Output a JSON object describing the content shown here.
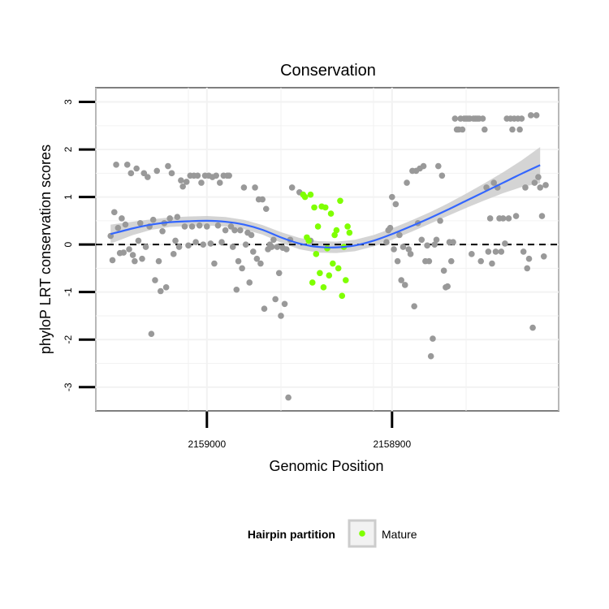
{
  "chart_data": {
    "type": "scatter",
    "title": "Conservation",
    "xlabel": "Genomic Position",
    "ylabel": "phyloP LRT conservation scores",
    "x_reversed": true,
    "xlim": [
      2159060,
      2158810
    ],
    "ylim": [
      -3.5,
      3.3
    ],
    "x_ticks": [
      2159000,
      2158900
    ],
    "x_tick_labels": [
      "2159000",
      "2158900"
    ],
    "y_ticks": [
      -3,
      -2,
      -1,
      0,
      1,
      2,
      3
    ],
    "y_tick_labels": [
      "-3",
      "-2",
      "-1",
      "0",
      "1",
      "2",
      "3"
    ],
    "reference_line": {
      "y": 0,
      "style": "dashed"
    },
    "legend": {
      "title": "Hairpin partition",
      "position": "bottom",
      "entries": [
        {
          "label": "Mature",
          "color": "#7fff00"
        }
      ]
    },
    "colors": {
      "other": "#999999",
      "mature": "#7fff00",
      "smooth": "#3366ff",
      "band": "#cccccc",
      "panel": "#ffffff",
      "grid": "#f2f2f2",
      "border": "#7f7f7f"
    },
    "series": [
      {
        "name": "Other",
        "points": [
          [
            2159052,
            0.18
          ],
          [
            2159051,
            -0.33
          ],
          [
            2159050,
            0.68
          ],
          [
            2159049,
            1.68
          ],
          [
            2159048,
            0.35
          ],
          [
            2159047,
            -0.18
          ],
          [
            2159046,
            0.55
          ],
          [
            2159045,
            -0.17
          ],
          [
            2159044,
            0.42
          ],
          [
            2159043,
            1.68
          ],
          [
            2159042,
            -0.1
          ],
          [
            2159041,
            1.5
          ],
          [
            2159040,
            -0.22
          ],
          [
            2159039,
            -0.35
          ],
          [
            2159038,
            1.6
          ],
          [
            2159037,
            0.08
          ],
          [
            2159036,
            0.45
          ],
          [
            2159035,
            -0.3
          ],
          [
            2159034,
            1.5
          ],
          [
            2159033,
            -0.05
          ],
          [
            2159032,
            1.42
          ],
          [
            2159031,
            0.38
          ],
          [
            2159030,
            -1.88
          ],
          [
            2159029,
            0.52
          ],
          [
            2159028,
            -0.75
          ],
          [
            2159027,
            1.55
          ],
          [
            2159026,
            -0.35
          ],
          [
            2159025,
            -0.98
          ],
          [
            2159024,
            0.28
          ],
          [
            2159023,
            0.45
          ],
          [
            2159022,
            -0.9
          ],
          [
            2159021,
            1.65
          ],
          [
            2159020,
            0.55
          ],
          [
            2159019,
            1.5
          ],
          [
            2159018,
            -0.2
          ],
          [
            2159017,
            0.08
          ],
          [
            2159016,
            0.58
          ],
          [
            2159015,
            -0.05
          ],
          [
            2159014,
            1.35
          ],
          [
            2159013,
            1.22
          ],
          [
            2159012,
            0.38
          ],
          [
            2159011,
            1.32
          ],
          [
            2159010,
            -0.02
          ],
          [
            2159009,
            1.45
          ],
          [
            2159008,
            0.38
          ],
          [
            2159007,
            1.45
          ],
          [
            2159006,
            0.05
          ],
          [
            2159005,
            1.45
          ],
          [
            2159004,
            0.4
          ],
          [
            2159003,
            1.3
          ],
          [
            2159002,
            0.0
          ],
          [
            2159001,
            1.45
          ],
          [
            2159000,
            0.38
          ],
          [
            2158999,
            1.45
          ],
          [
            2158998,
            0.02
          ],
          [
            2158997,
            1.42
          ],
          [
            2158996,
            -0.4
          ],
          [
            2158995,
            1.45
          ],
          [
            2158994,
            0.4
          ],
          [
            2158993,
            1.3
          ],
          [
            2158992,
            0.05
          ],
          [
            2158991,
            1.45
          ],
          [
            2158990,
            0.3
          ],
          [
            2158989,
            1.45
          ],
          [
            2158988,
            1.45
          ],
          [
            2158987,
            0.38
          ],
          [
            2158986,
            -0.05
          ],
          [
            2158985,
            0.3
          ],
          [
            2158984,
            -0.95
          ],
          [
            2158983,
            -0.35
          ],
          [
            2158982,
            0.3
          ],
          [
            2158981,
            -0.5
          ],
          [
            2158980,
            1.2
          ],
          [
            2158979,
            0.0
          ],
          [
            2158978,
            0.25
          ],
          [
            2158977,
            -0.8
          ],
          [
            2158976,
            0.2
          ],
          [
            2158975,
            -0.15
          ],
          [
            2158974,
            1.2
          ],
          [
            2158973,
            -0.3
          ],
          [
            2158972,
            0.95
          ],
          [
            2158971,
            -0.4
          ],
          [
            2158970,
            0.95
          ],
          [
            2158969,
            -1.35
          ],
          [
            2158968,
            0.75
          ],
          [
            2158967,
            -0.1
          ],
          [
            2158966,
            0.0
          ],
          [
            2158965,
            -0.05
          ],
          [
            2158964,
            0.1
          ],
          [
            2158963,
            -1.15
          ],
          [
            2158962,
            -0.05
          ],
          [
            2158961,
            -0.6
          ],
          [
            2158960,
            -1.5
          ],
          [
            2158959,
            -0.07
          ],
          [
            2158958,
            -1.25
          ],
          [
            2158957,
            -0.1
          ],
          [
            2158956,
            -3.22
          ],
          [
            2158955,
            0.1
          ],
          [
            2158954,
            1.2
          ],
          [
            2158950,
            1.1
          ],
          [
            2158944,
            0.08
          ],
          [
            2158903,
            0.05
          ],
          [
            2158902,
            0.3
          ],
          [
            2158901,
            0.35
          ],
          [
            2158900,
            1.0
          ],
          [
            2158899,
            -0.1
          ],
          [
            2158898,
            0.85
          ],
          [
            2158897,
            -0.35
          ],
          [
            2158896,
            0.2
          ],
          [
            2158895,
            -0.75
          ],
          [
            2158894,
            -0.05
          ],
          [
            2158893,
            -0.85
          ],
          [
            2158892,
            1.3
          ],
          [
            2158891,
            -0.1
          ],
          [
            2158890,
            -0.2
          ],
          [
            2158889,
            1.55
          ],
          [
            2158888,
            -1.3
          ],
          [
            2158887,
            1.55
          ],
          [
            2158886,
            0.45
          ],
          [
            2158885,
            1.6
          ],
          [
            2158884,
            0.1
          ],
          [
            2158883,
            1.65
          ],
          [
            2158882,
            -0.35
          ],
          [
            2158881,
            -0.02
          ],
          [
            2158880,
            -0.35
          ],
          [
            2158879,
            -2.35
          ],
          [
            2158878,
            -1.98
          ],
          [
            2158877,
            0.0
          ],
          [
            2158876,
            0.1
          ],
          [
            2158875,
            1.65
          ],
          [
            2158874,
            0.5
          ],
          [
            2158873,
            1.45
          ],
          [
            2158872,
            -0.55
          ],
          [
            2158871,
            -0.9
          ],
          [
            2158870,
            -0.88
          ],
          [
            2158869,
            0.05
          ],
          [
            2158868,
            -0.35
          ],
          [
            2158867,
            0.05
          ],
          [
            2158866,
            2.65
          ],
          [
            2158865,
            2.42
          ],
          [
            2158864,
            2.42
          ],
          [
            2158863,
            2.65
          ],
          [
            2158862,
            2.42
          ],
          [
            2158861,
            2.65
          ],
          [
            2158860,
            2.65
          ],
          [
            2158859,
            2.65
          ],
          [
            2158858,
            2.65
          ],
          [
            2158857,
            -0.2
          ],
          [
            2158856,
            2.65
          ],
          [
            2158855,
            2.65
          ],
          [
            2158854,
            2.65
          ],
          [
            2158853,
            2.65
          ],
          [
            2158852,
            -0.35
          ],
          [
            2158851,
            2.65
          ],
          [
            2158850,
            2.42
          ],
          [
            2158849,
            1.2
          ],
          [
            2158848,
            -0.15
          ],
          [
            2158847,
            0.55
          ],
          [
            2158846,
            -0.4
          ],
          [
            2158845,
            1.3
          ],
          [
            2158844,
            -0.15
          ],
          [
            2158843,
            1.2
          ],
          [
            2158842,
            0.55
          ],
          [
            2158841,
            -0.15
          ],
          [
            2158840,
            0.55
          ],
          [
            2158839,
            0.02
          ],
          [
            2158838,
            2.65
          ],
          [
            2158837,
            0.55
          ],
          [
            2158836,
            2.65
          ],
          [
            2158835,
            2.42
          ],
          [
            2158834,
            2.65
          ],
          [
            2158833,
            0.6
          ],
          [
            2158832,
            2.65
          ],
          [
            2158831,
            2.42
          ],
          [
            2158830,
            2.65
          ],
          [
            2158829,
            -0.15
          ],
          [
            2158828,
            1.2
          ],
          [
            2158827,
            -0.5
          ],
          [
            2158826,
            -0.3
          ],
          [
            2158825,
            2.72
          ],
          [
            2158824,
            -1.75
          ],
          [
            2158823,
            1.3
          ],
          [
            2158822,
            2.72
          ],
          [
            2158821,
            1.42
          ],
          [
            2158820,
            1.2
          ],
          [
            2158819,
            0.6
          ],
          [
            2158818,
            -0.25
          ],
          [
            2158817,
            1.25
          ]
        ]
      },
      {
        "name": "Mature",
        "points": [
          [
            2158948,
            1.05
          ],
          [
            2158947,
            1.0
          ],
          [
            2158946,
            0.15
          ],
          [
            2158945,
            0.08
          ],
          [
            2158944,
            1.05
          ],
          [
            2158943,
            -0.8
          ],
          [
            2158942,
            0.78
          ],
          [
            2158941,
            -0.2
          ],
          [
            2158940,
            0.38
          ],
          [
            2158939,
            -0.6
          ],
          [
            2158938,
            0.8
          ],
          [
            2158937,
            -0.9
          ],
          [
            2158936,
            0.78
          ],
          [
            2158935,
            -0.08
          ],
          [
            2158934,
            -0.65
          ],
          [
            2158933,
            0.65
          ],
          [
            2158932,
            -0.4
          ],
          [
            2158931,
            0.2
          ],
          [
            2158930,
            0.3
          ],
          [
            2158929,
            -0.5
          ],
          [
            2158928,
            0.92
          ],
          [
            2158927,
            -1.08
          ],
          [
            2158926,
            -0.05
          ],
          [
            2158925,
            -0.75
          ],
          [
            2158924,
            0.38
          ],
          [
            2158923,
            0.25
          ]
        ]
      }
    ],
    "smooth": {
      "method": "loess",
      "x": [
        2159052,
        2159040,
        2159030,
        2159020,
        2159010,
        2159000,
        2158990,
        2158980,
        2158970,
        2158960,
        2158950,
        2158940,
        2158930,
        2158920,
        2158910,
        2158900,
        2158890,
        2158880,
        2158870,
        2158860,
        2158850,
        2158840,
        2158830,
        2158820
      ],
      "y": [
        0.22,
        0.34,
        0.42,
        0.47,
        0.49,
        0.5,
        0.48,
        0.42,
        0.31,
        0.15,
        0.02,
        -0.05,
        -0.06,
        -0.02,
        0.08,
        0.22,
        0.38,
        0.55,
        0.73,
        0.92,
        1.11,
        1.3,
        1.49,
        1.67
      ],
      "se": [
        0.2,
        0.14,
        0.11,
        0.1,
        0.1,
        0.1,
        0.1,
        0.1,
        0.1,
        0.11,
        0.12,
        0.12,
        0.12,
        0.12,
        0.12,
        0.12,
        0.12,
        0.12,
        0.13,
        0.15,
        0.18,
        0.22,
        0.28,
        0.38
      ]
    }
  }
}
